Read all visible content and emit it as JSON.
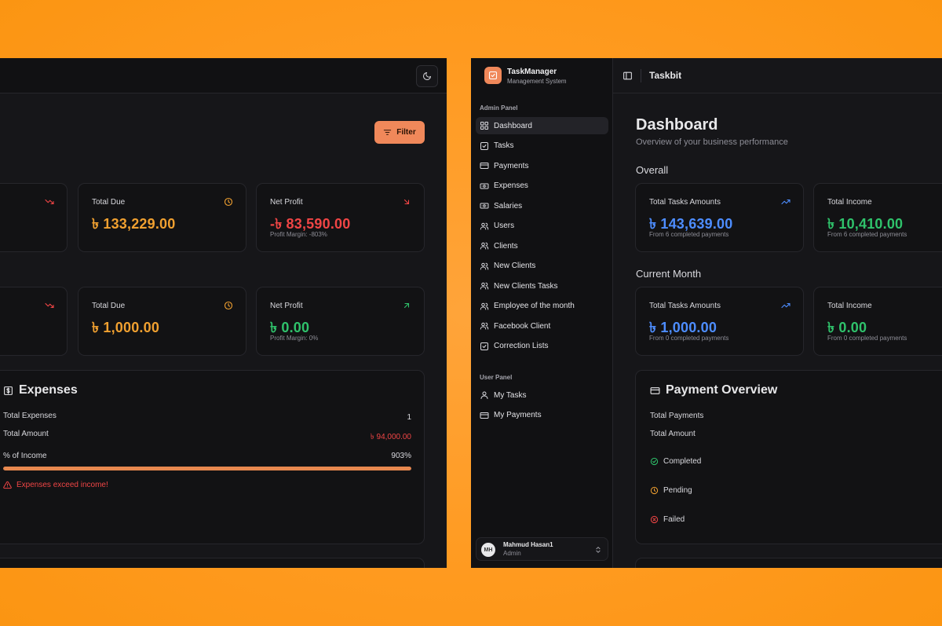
{
  "left": {
    "filter_label": "Filter",
    "row1": [
      {
        "title": "Total Due",
        "value": "৳ 133,229.00",
        "sub": ""
      },
      {
        "title": "Net Profit",
        "value": "-৳ 83,590.00",
        "sub": "Profit Margin: -803%"
      }
    ],
    "row2": [
      {
        "title": "Total Due",
        "value": "৳ 1,000.00",
        "sub": ""
      },
      {
        "title": "Net Profit",
        "value": "৳ 0.00",
        "sub": "Profit Margin: 0%"
      }
    ],
    "expenses": {
      "title": "Expenses",
      "total_expenses_label": "Total Expenses",
      "total_expenses_value": "1",
      "total_amount_label": "Total Amount",
      "total_amount_value": "৳ 94,000.00",
      "pct_label": "% of Income",
      "pct_value": "903%",
      "progress_fraction": 1.0,
      "warning": "Expenses exceed income!"
    }
  },
  "sidebar": {
    "brand_name": "TaskManager",
    "brand_sub": "Management System",
    "admin_label": "Admin Panel",
    "admin_items": [
      {
        "label": "Dashboard",
        "icon": "grid-icon",
        "active": true
      },
      {
        "label": "Tasks",
        "icon": "checkbox-icon"
      },
      {
        "label": "Payments",
        "icon": "credit-card-icon"
      },
      {
        "label": "Expenses",
        "icon": "banknote-icon"
      },
      {
        "label": "Salaries",
        "icon": "banknote-icon"
      },
      {
        "label": "Users",
        "icon": "users-icon"
      },
      {
        "label": "Clients",
        "icon": "users-icon"
      },
      {
        "label": "New Clients",
        "icon": "users-icon"
      },
      {
        "label": "New Clients Tasks",
        "icon": "users-icon"
      },
      {
        "label": "Employee of the month",
        "icon": "users-icon"
      },
      {
        "label": "Facebook Client",
        "icon": "users-icon"
      },
      {
        "label": "Correction Lists",
        "icon": "checkbox-icon"
      }
    ],
    "user_label": "User Panel",
    "user_items": [
      {
        "label": "My Tasks",
        "icon": "user-icon"
      },
      {
        "label": "My Payments",
        "icon": "credit-card-icon"
      }
    ],
    "user": {
      "initials": "MH",
      "name": "Mahmud Hasan1",
      "role": "Admin"
    }
  },
  "header": {
    "title": "Taskbit"
  },
  "main": {
    "title": "Dashboard",
    "subtitle": "Overview of your business performance",
    "overall_label": "Overall",
    "current_month_label": "Current Month",
    "overall": [
      {
        "title": "Total Tasks Amounts",
        "value": "৳ 143,639.00",
        "sub": "From 6 completed payments"
      },
      {
        "title": "Total Income",
        "value": "৳ 10,410.00",
        "sub": "From 6 completed payments"
      }
    ],
    "current": [
      {
        "title": "Total Tasks Amounts",
        "value": "৳ 1,000.00",
        "sub": "From 0 completed payments"
      },
      {
        "title": "Total Income",
        "value": "৳ 0.00",
        "sub": "From 0 completed payments"
      }
    ],
    "payment_overview": {
      "title": "Payment Overview",
      "total_payments_label": "Total Payments",
      "total_amount_label": "Total Amount",
      "completed_label": "Completed",
      "pending_label": "Pending",
      "failed_label": "Failed"
    }
  },
  "colors": {
    "accent": "#f0885a",
    "positive": "#2fc26b",
    "negative": "#f04545",
    "warning": "#f0a030",
    "info": "#4d8dff"
  }
}
